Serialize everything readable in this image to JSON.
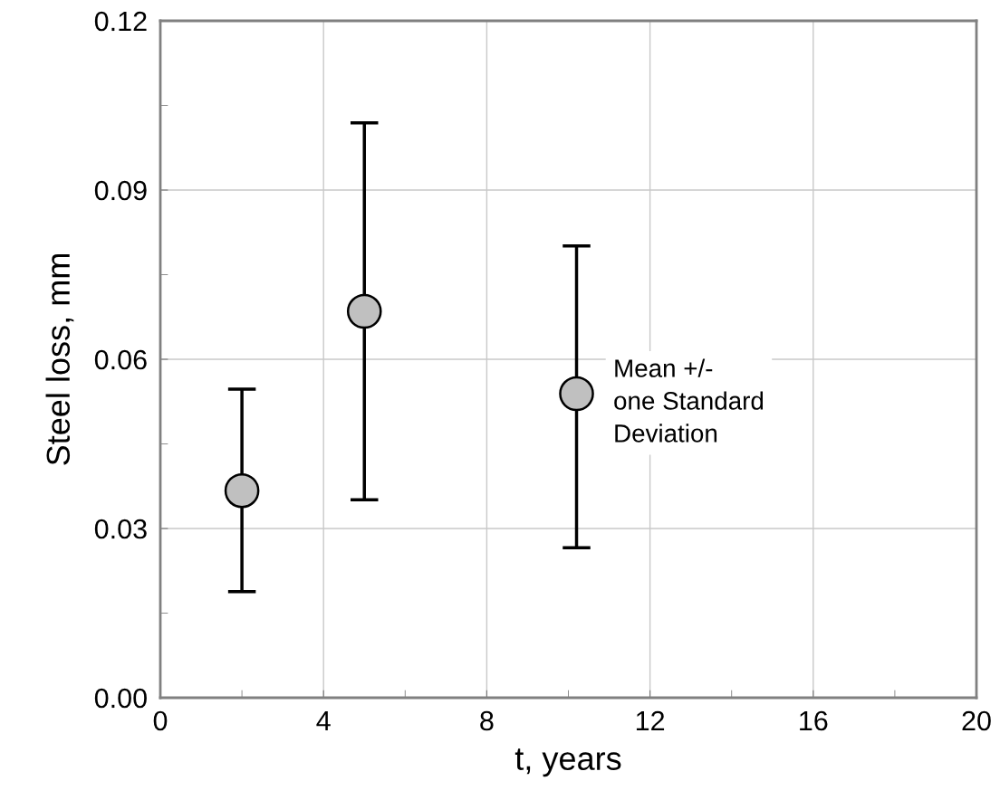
{
  "chart_data": {
    "type": "scatter",
    "xlabel": "t, years",
    "ylabel": "Steel loss, mm",
    "x": [
      2.0,
      5.0,
      10.2
    ],
    "values": [
      0.0367,
      0.0685,
      0.0539
    ],
    "errors": [
      [
        0.0188,
        0.0547
      ],
      [
        0.0351,
        0.1019
      ],
      [
        0.0266,
        0.0801
      ]
    ],
    "color": "#c0c0c0",
    "marker": "circle",
    "xlim": [
      0,
      20
    ],
    "ylim": [
      0,
      0.12
    ],
    "xticks": [
      0,
      {
        "value": 2,
        "label": null
      },
      4,
      {
        "value": 6,
        "label": null
      },
      8,
      {
        "value": 10,
        "label": null
      },
      12,
      {
        "value": 14,
        "label": null
      },
      16,
      {
        "value": 18,
        "label": null
      },
      20
    ],
    "yticks": [
      {
        "value": 0,
        "label": "0.00"
      },
      {
        "value": 0.015,
        "label": null
      },
      {
        "value": 0.03,
        "label": "0.03"
      },
      {
        "value": 0.045,
        "label": null
      },
      {
        "value": 0.06,
        "label": "0.06"
      },
      {
        "value": 0.075,
        "label": null
      },
      {
        "value": 0.09,
        "label": "0.09"
      },
      {
        "value": 0.105,
        "label": null
      },
      {
        "value": 0.12,
        "label": "0.12"
      }
    ],
    "grid": true,
    "annotations": [
      "Mean +/-\none Standard\nDeviation"
    ]
  }
}
